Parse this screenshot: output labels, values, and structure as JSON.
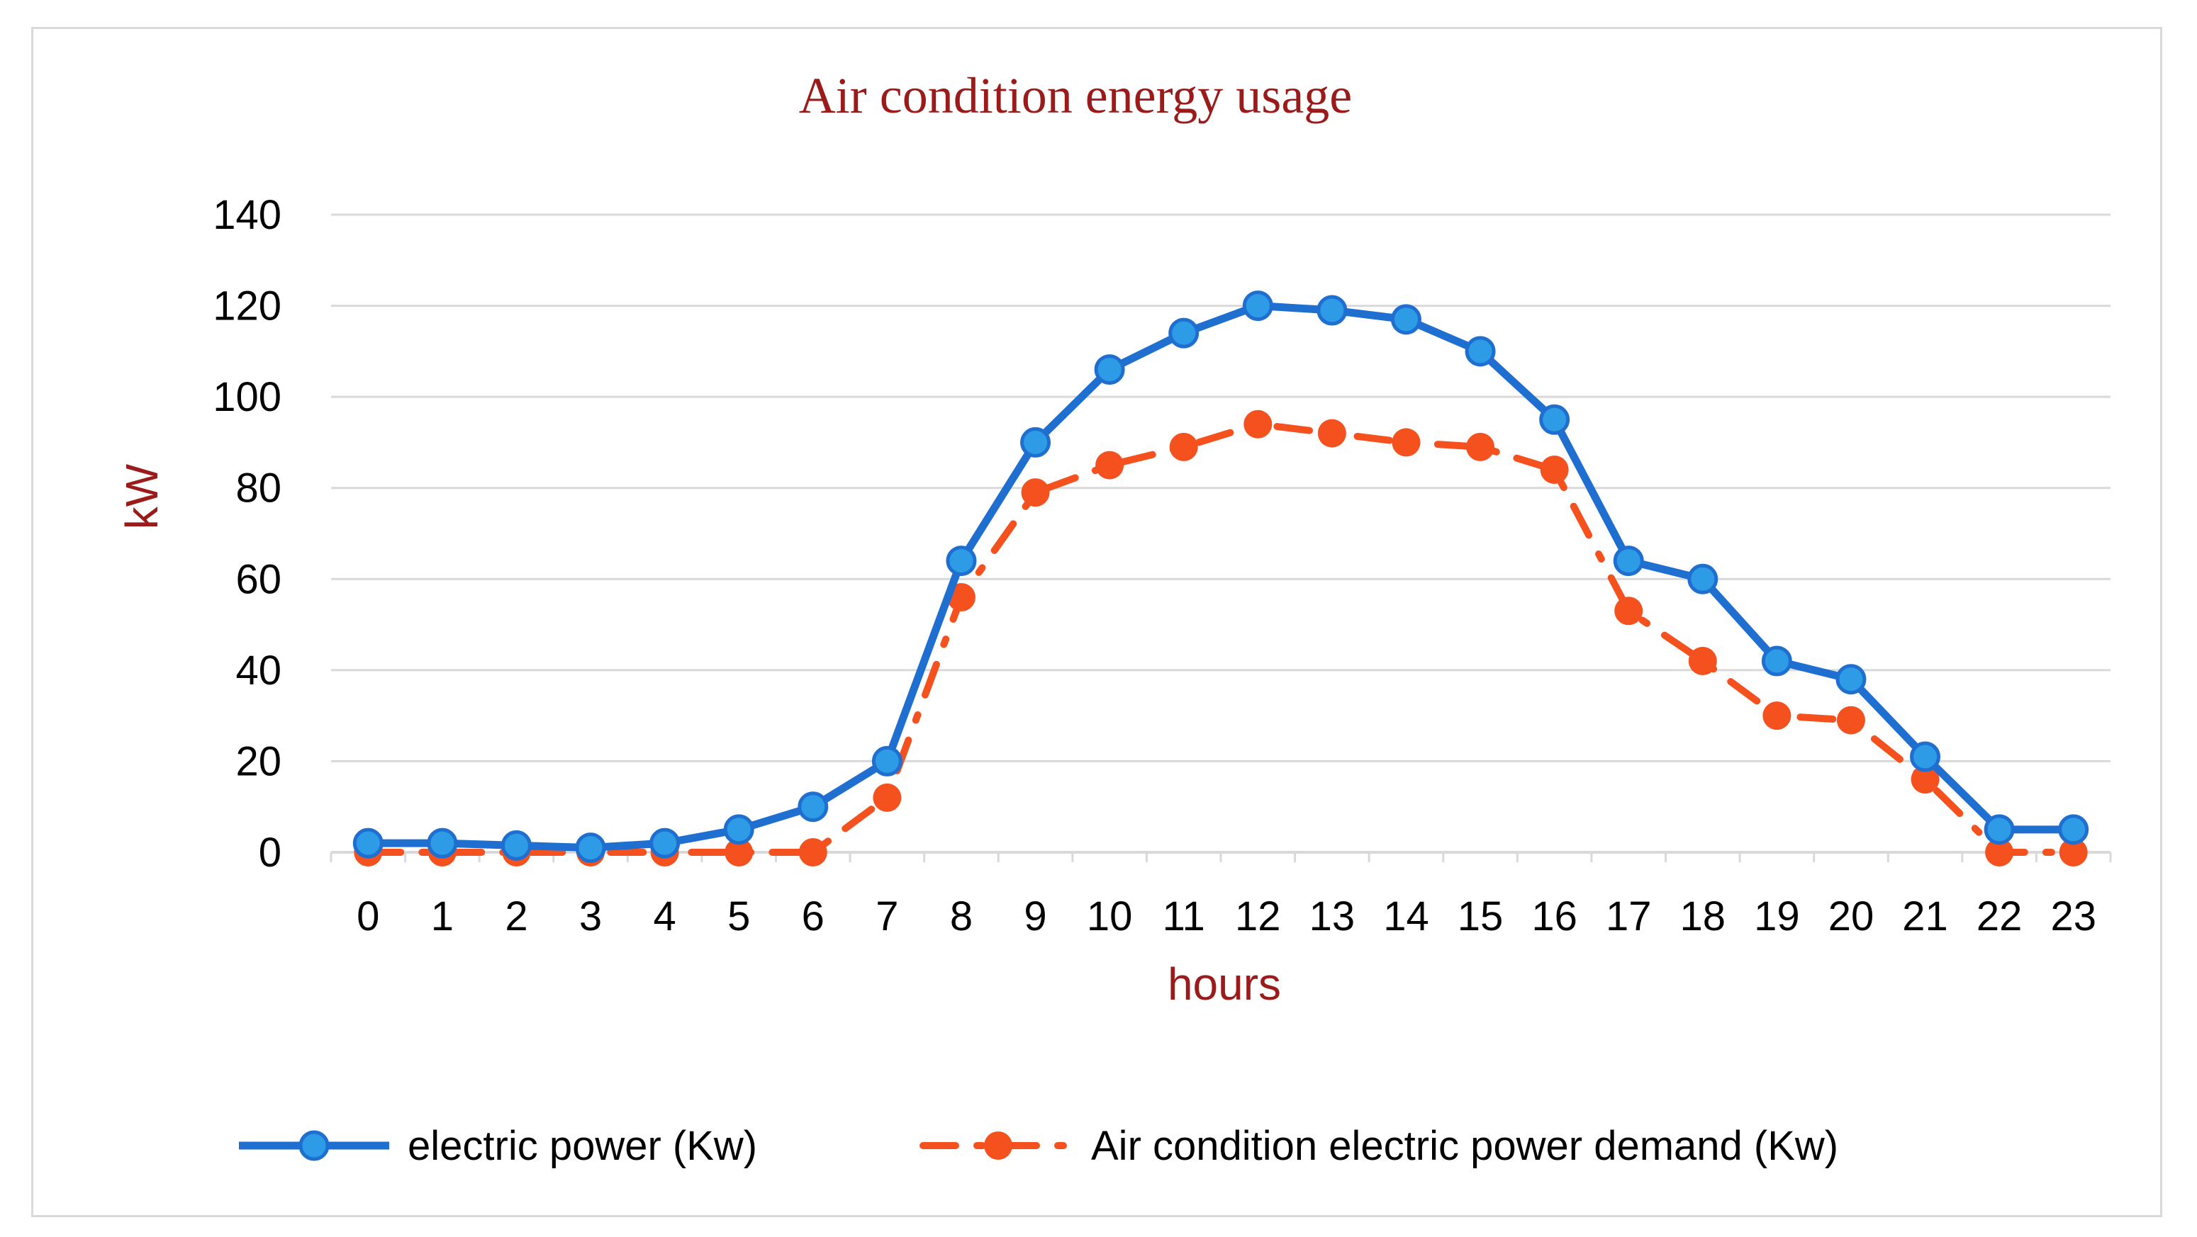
{
  "chart_data": {
    "type": "line",
    "title": "Air condition energy usage",
    "xlabel": "hours",
    "ylabel": "kW",
    "categories": [
      "0",
      "1",
      "2",
      "3",
      "4",
      "5",
      "6",
      "7",
      "8",
      "9",
      "10",
      "11",
      "12",
      "13",
      "14",
      "15",
      "16",
      "17",
      "18",
      "19",
      "20",
      "21",
      "22",
      "23"
    ],
    "ylim": [
      0,
      140
    ],
    "yticks": [
      0,
      20,
      40,
      60,
      80,
      100,
      120,
      140
    ],
    "grid": true,
    "legend_position": "bottom",
    "series": [
      {
        "name": "electric power (Kw)",
        "color": "#1f6fd1",
        "marker_color": "#2e9be6",
        "style": "solid",
        "values": [
          2,
          2,
          1.5,
          1,
          2,
          5,
          10,
          20,
          64,
          90,
          106,
          114,
          120,
          119,
          117,
          110,
          95,
          64,
          60,
          42,
          38,
          21,
          5,
          5
        ]
      },
      {
        "name": "Air condition electric power demand (Kw)",
        "color": "#f4511e",
        "marker_color": "#f4511e",
        "style": "dash-dot",
        "values": [
          0,
          0,
          0,
          0,
          0,
          0,
          0,
          12,
          56,
          79,
          85,
          89,
          94,
          92,
          90,
          89,
          84,
          53,
          42,
          30,
          29,
          16,
          0,
          0
        ]
      }
    ],
    "colors": {
      "title": "#9b1b1b",
      "axis_label": "#9b1b1b",
      "grid": "#d9d9d9"
    }
  }
}
